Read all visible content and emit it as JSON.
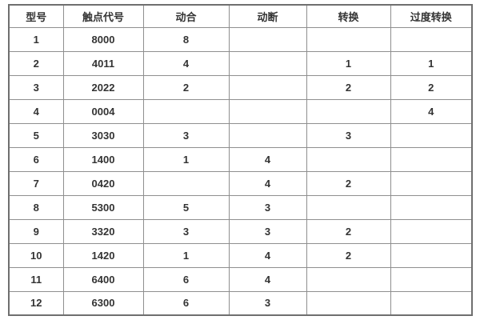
{
  "colors": {
    "background": "#ffffff",
    "grid_line": "#8f8f8f",
    "outer_border": "#6f6f6f",
    "text": "#333333"
  },
  "table": {
    "headers": [
      "型号",
      "触点代号",
      "动合",
      "动断",
      "转换",
      "过度转换"
    ],
    "rows": [
      [
        "1",
        "8000",
        "8",
        "",
        "",
        ""
      ],
      [
        "2",
        "4011",
        "4",
        "",
        "1",
        "1"
      ],
      [
        "3",
        "2022",
        "2",
        "",
        "2",
        "2"
      ],
      [
        "4",
        "0004",
        "",
        "",
        "",
        "4"
      ],
      [
        "5",
        "3030",
        "3",
        "",
        "3",
        ""
      ],
      [
        "6",
        "1400",
        "1",
        "4",
        "",
        ""
      ],
      [
        "7",
        "0420",
        "",
        "4",
        "2",
        ""
      ],
      [
        "8",
        "5300",
        "5",
        "3",
        "",
        ""
      ],
      [
        "9",
        "3320",
        "3",
        "3",
        "2",
        ""
      ],
      [
        "10",
        "1420",
        "1",
        "4",
        "2",
        ""
      ],
      [
        "11",
        "6400",
        "6",
        "4",
        "",
        ""
      ],
      [
        "12",
        "6300",
        "6",
        "3",
        "",
        ""
      ]
    ]
  }
}
